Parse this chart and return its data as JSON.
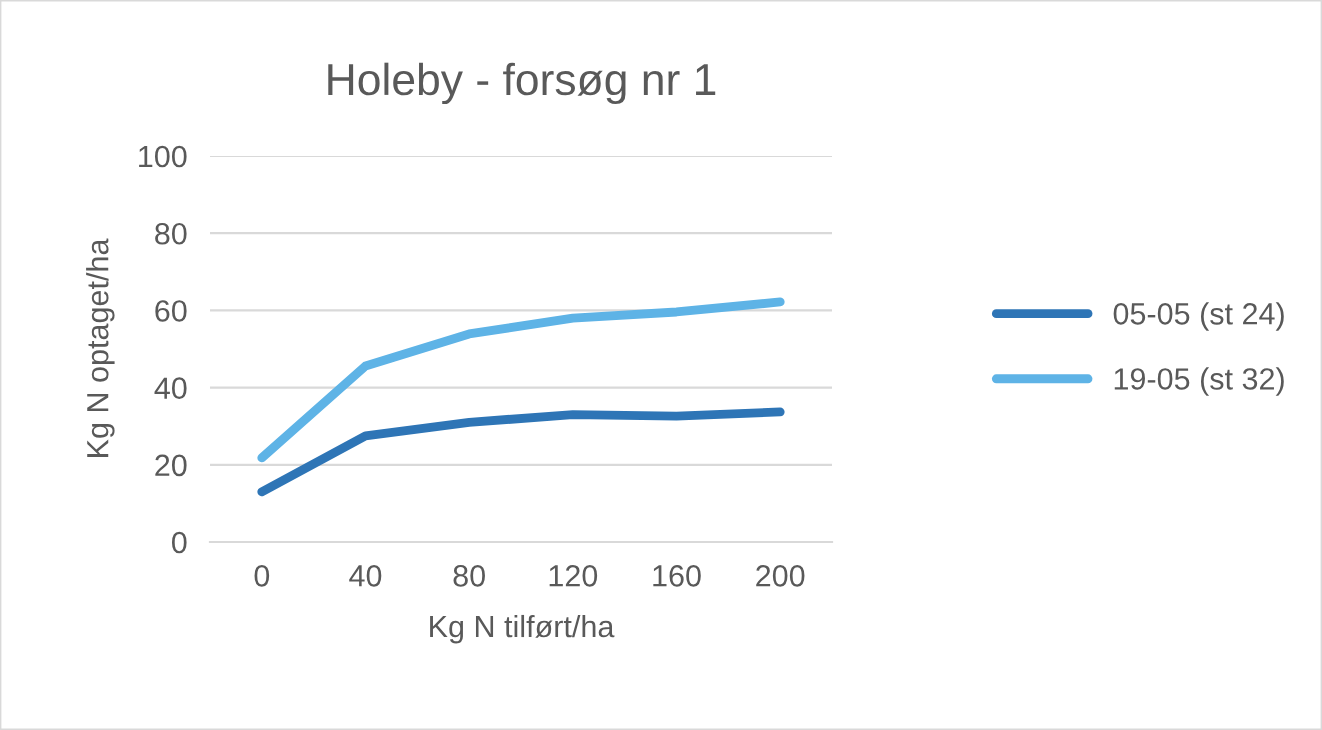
{
  "chart_data": {
    "type": "line",
    "title": "Holeby - forsøg nr 1",
    "xlabel": "Kg N tilført/ha",
    "ylabel": "Kg N optaget/ha",
    "categories": [
      "0",
      "40",
      "80",
      "120",
      "160",
      "200"
    ],
    "series": [
      {
        "name": "05-05 (st 24)",
        "color": "#2e75b6",
        "values": [
          13,
          27.5,
          31,
          33,
          32.6,
          33.7
        ]
      },
      {
        "name": "19-05 (st 32)",
        "color": "#5eb3e6",
        "values": [
          21.8,
          45.6,
          53.9,
          58,
          59.6,
          62.2
        ]
      }
    ],
    "ylim": [
      0,
      100
    ],
    "yticks": [
      0,
      20,
      40,
      60,
      80,
      100
    ],
    "grid": "y",
    "legend": "right",
    "marker": "none",
    "line_style": "solid"
  }
}
